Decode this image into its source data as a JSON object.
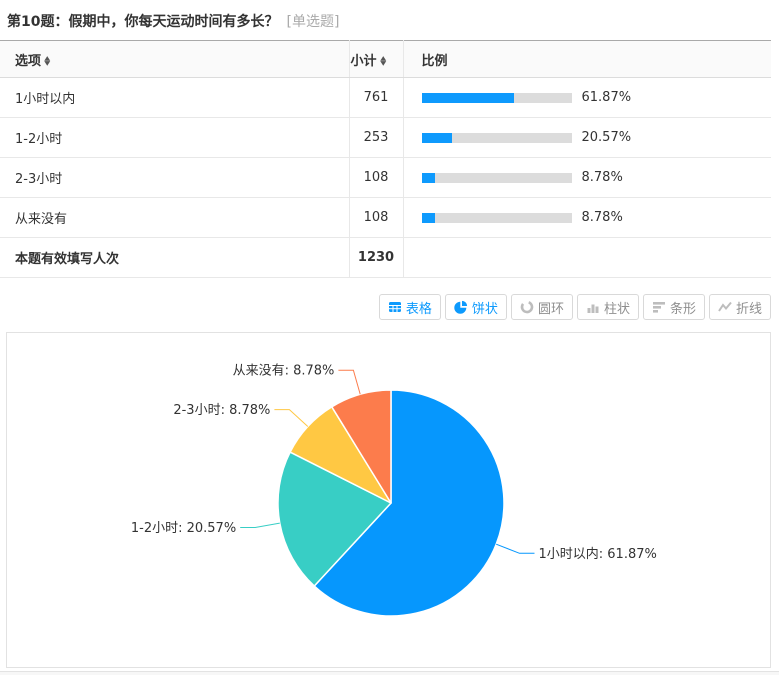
{
  "header": {
    "title": "第10题：假期中，你每天运动时间有多长？",
    "type_tag": "[单选题]"
  },
  "table": {
    "columns": {
      "option": "选项",
      "count": "小计",
      "ratio": "比例"
    },
    "rows": [
      {
        "option": "1小时以内",
        "count": "761",
        "pct": 61.87,
        "pct_label": "61.87%"
      },
      {
        "option": "1-2小时",
        "count": "253",
        "pct": 20.57,
        "pct_label": "20.57%"
      },
      {
        "option": "2-3小时",
        "count": "108",
        "pct": 8.78,
        "pct_label": "8.78%"
      },
      {
        "option": "从来没有",
        "count": "108",
        "pct": 8.78,
        "pct_label": "8.78%"
      }
    ],
    "footer": {
      "label": "本题有效填写人次",
      "total": "1230"
    }
  },
  "toolbar": {
    "buttons": [
      {
        "label": "表格",
        "icon": "table-icon",
        "active": true
      },
      {
        "label": "饼状",
        "icon": "pie-icon",
        "active": true
      },
      {
        "label": "圆环",
        "icon": "donut-icon",
        "active": false
      },
      {
        "label": "柱状",
        "icon": "column-icon",
        "active": false
      },
      {
        "label": "条形",
        "icon": "hbar-icon",
        "active": false
      },
      {
        "label": "折线",
        "icon": "line-icon",
        "active": false
      }
    ]
  },
  "chart_data": {
    "type": "pie",
    "labels": [
      "1小时以内",
      "1-2小时",
      "2-3小时",
      "从来没有"
    ],
    "values": [
      61.87,
      20.57,
      8.78,
      8.78
    ],
    "counts": [
      761,
      253,
      108,
      108
    ],
    "colors": [
      "#0697fd",
      "#38cec5",
      "#ffc843",
      "#fc7c4c"
    ],
    "label_format": "{name}: {value}%",
    "start_angle_deg": 0,
    "direction": "clockwise",
    "legend": "none",
    "label_text_color": "#333"
  },
  "colors": {
    "accent_blue": "#0d9afd",
    "bar_fill": "#0e9afd",
    "bar_track": "#dcdcdc"
  }
}
